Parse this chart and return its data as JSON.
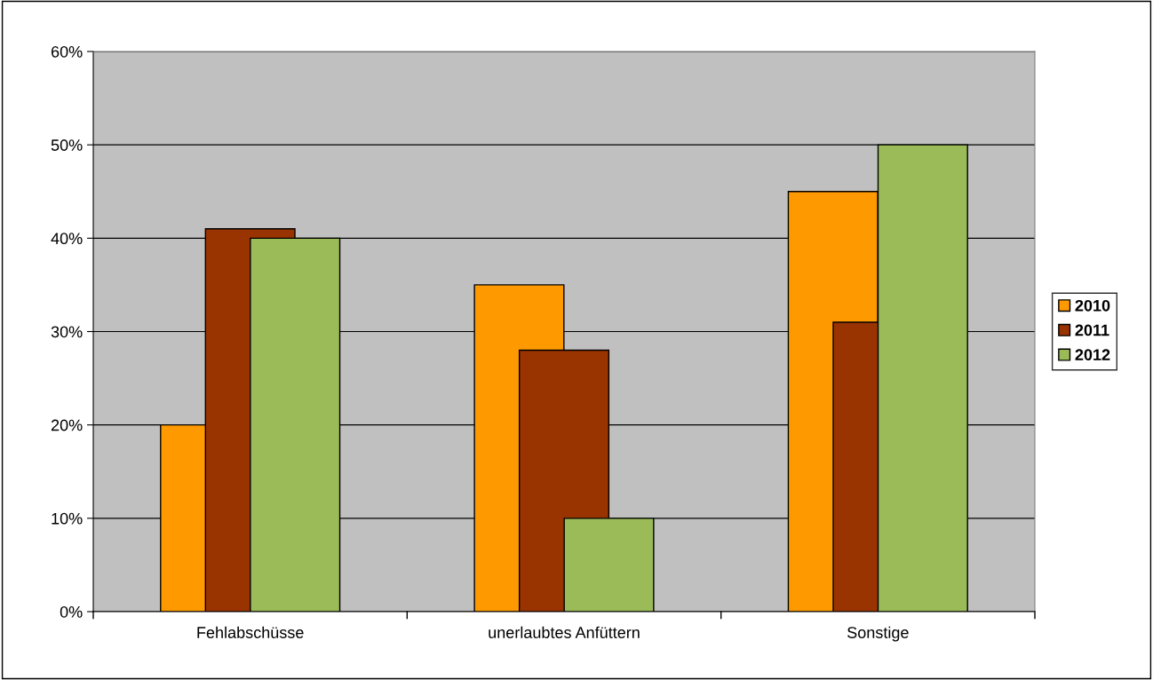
{
  "chart_data": {
    "type": "bar",
    "categories": [
      "Fehlabschüsse",
      "unerlaubtes Anfüttern",
      "Sonstige"
    ],
    "series": [
      {
        "name": "2010",
        "color": "#ff9900",
        "values": [
          20,
          35,
          45
        ]
      },
      {
        "name": "2011",
        "color": "#993300",
        "values": [
          41,
          28,
          31
        ]
      },
      {
        "name": "2012",
        "color": "#9bbb59",
        "values": [
          40,
          10,
          50
        ]
      }
    ],
    "ylim": [
      0,
      60
    ],
    "yticks": [
      {
        "value": 0,
        "label": "0%"
      },
      {
        "value": 10,
        "label": "10%"
      },
      {
        "value": 20,
        "label": "20%"
      },
      {
        "value": 30,
        "label": "30%"
      },
      {
        "value": 40,
        "label": "40%"
      },
      {
        "value": 50,
        "label": "50%"
      },
      {
        "value": 60,
        "label": "60%"
      }
    ],
    "grid": "y",
    "legend": "right"
  }
}
